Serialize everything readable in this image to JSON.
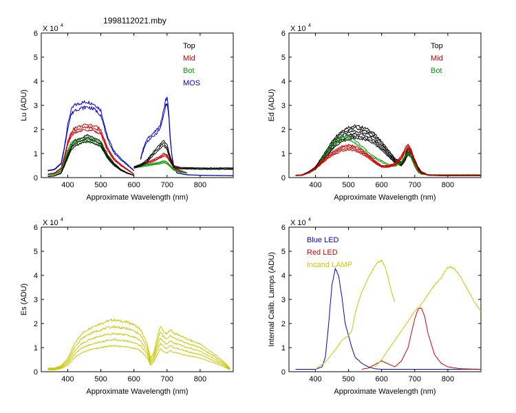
{
  "figure_title": "1998112021.mby",
  "chart_data": [
    {
      "id": "lu",
      "type": "line",
      "ylabel": "Lu (ADU)",
      "xlabel": "Approximate Wavelength (nm)",
      "exponent_label": "X 10",
      "exponent_power": "4",
      "xlim": [
        320,
        900
      ],
      "ylim": [
        0,
        6
      ],
      "xticks": [
        400,
        500,
        600,
        700,
        800
      ],
      "yticks": [
        0,
        1,
        2,
        3,
        4,
        5,
        6
      ],
      "legend": [
        {
          "label": "Top",
          "color": "#000000"
        },
        {
          "label": "Mid",
          "color": "#cc0000"
        },
        {
          "label": "Bot",
          "color": "#009900"
        },
        {
          "label": "MOS",
          "color": "#0000cc"
        }
      ],
      "series": [
        {
          "name": "MOS",
          "color": "#0000cc",
          "count": 2,
          "scales": [
            1.0,
            0.93
          ],
          "segments": [
            {
              "x": [
                340,
                360,
                380,
                390,
                400,
                410,
                420,
                440,
                460,
                480,
                500,
                520,
                540,
                560,
                580,
                600
              ],
              "y": [
                0.3,
                0.35,
                0.6,
                1.3,
                2.2,
                2.8,
                3.0,
                3.1,
                3.15,
                3.05,
                2.8,
                1.7,
                1.1,
                0.8,
                0.55,
                0.3
              ]
            },
            {
              "x": [
                620,
                630,
                640,
                650,
                660,
                670,
                680,
                690,
                695,
                700,
                705,
                710,
                715,
                720,
                730,
                760,
                800,
                900
              ],
              "y": [
                0.8,
                1.3,
                1.6,
                1.75,
                1.85,
                2.0,
                2.2,
                2.8,
                3.2,
                3.3,
                2.8,
                1.6,
                0.9,
                0.5,
                0.2,
                0.12,
                0.1,
                0.08
              ]
            }
          ]
        },
        {
          "name": "Mid",
          "color": "#cc0000",
          "count": 3,
          "scales": [
            1.0,
            0.95,
            0.9
          ],
          "segments": [
            {
              "x": [
                340,
                360,
                380,
                390,
                400,
                410,
                420,
                440,
                460,
                480,
                500,
                520,
                540,
                560,
                580,
                600
              ],
              "y": [
                0.15,
                0.2,
                0.4,
                0.9,
                1.5,
                1.9,
                2.05,
                2.15,
                2.2,
                2.15,
                2.0,
                1.25,
                0.8,
                0.55,
                0.35,
                0.15
              ]
            },
            {
              "x": [
                600,
                620,
                640,
                660,
                680,
                690,
                700,
                710,
                720,
                740,
                760
              ],
              "y": [
                0.45,
                0.55,
                0.65,
                0.75,
                0.9,
                1.0,
                0.95,
                0.7,
                0.45,
                0.3,
                0.2
              ]
            }
          ]
        },
        {
          "name": "Bot",
          "color": "#009900",
          "count": 3,
          "scales": [
            1.0,
            0.94,
            0.88
          ],
          "segments": [
            {
              "x": [
                340,
                360,
                380,
                390,
                400,
                410,
                420,
                440,
                460,
                480,
                500,
                520,
                540,
                560,
                580,
                600
              ],
              "y": [
                0.12,
                0.15,
                0.3,
                0.7,
                1.15,
                1.45,
                1.55,
                1.62,
                1.68,
                1.6,
                1.45,
                0.9,
                0.55,
                0.35,
                0.2,
                0.1
              ]
            },
            {
              "x": [
                600,
                620,
                640,
                660,
                680,
                690,
                700,
                710,
                720,
                740,
                760
              ],
              "y": [
                0.45,
                0.5,
                0.55,
                0.6,
                0.65,
                0.7,
                0.65,
                0.5,
                0.35,
                0.25,
                0.2
              ]
            }
          ]
        },
        {
          "name": "Top",
          "color": "#000000",
          "count": 3,
          "scales": [
            1.0,
            0.93,
            0.86
          ],
          "segments": [
            {
              "x": [
                340,
                360,
                380,
                390,
                400,
                410,
                420,
                440,
                460,
                480,
                500,
                520,
                540,
                560,
                580,
                600
              ],
              "y": [
                0.05,
                0.08,
                0.2,
                0.55,
                0.95,
                1.3,
                1.5,
                1.65,
                1.75,
                1.65,
                1.5,
                0.95,
                0.6,
                0.35,
                0.2,
                0.1
              ]
            },
            {
              "x": [
                600,
                620,
                640,
                660,
                680,
                690,
                700,
                710,
                720,
                740,
                800,
                900
              ],
              "y": [
                0.45,
                0.55,
                0.75,
                1.1,
                1.4,
                1.55,
                1.35,
                0.85,
                0.5,
                0.42,
                0.4,
                0.4
              ]
            }
          ]
        }
      ]
    },
    {
      "id": "ed",
      "type": "line",
      "ylabel": "Ed  (ADU)",
      "xlabel": "Approximate Wavelength (nm)",
      "exponent_label": "X 10",
      "exponent_power": "4",
      "xlim": [
        320,
        900
      ],
      "ylim": [
        0,
        6
      ],
      "xticks": [
        400,
        500,
        600,
        700,
        800
      ],
      "yticks": [
        0,
        1,
        2,
        3,
        4,
        5,
        6
      ],
      "legend": [
        {
          "label": "Top",
          "color": "#000000"
        },
        {
          "label": "Mid",
          "color": "#cc0000"
        },
        {
          "label": "Bot",
          "color": "#009900"
        }
      ],
      "series": [
        {
          "name": "Top",
          "color": "#000000",
          "count": 6,
          "scales": [
            1.0,
            0.95,
            0.9,
            0.85,
            0.8,
            0.76
          ],
          "segments": [
            {
              "x": [
                340,
                360,
                380,
                400,
                420,
                440,
                460,
                480,
                500,
                520,
                540,
                560,
                580,
                600,
                620,
                640,
                660,
                670,
                680,
                690,
                700,
                710,
                720,
                740,
                780,
                900
              ],
              "y": [
                0.1,
                0.12,
                0.25,
                0.45,
                0.85,
                1.3,
                1.7,
                1.95,
                2.1,
                2.15,
                2.1,
                2.0,
                1.8,
                1.5,
                1.15,
                0.8,
                0.65,
                0.9,
                1.25,
                1.1,
                0.75,
                0.45,
                0.25,
                0.12,
                0.1,
                0.1
              ]
            }
          ]
        },
        {
          "name": "Bot",
          "color": "#009900",
          "count": 2,
          "scales": [
            1.0,
            0.92
          ],
          "segments": [
            {
              "x": [
                400,
                420,
                440,
                460,
                480,
                500,
                520,
                540,
                560,
                580,
                600,
                620,
                640,
                660,
                670,
                680,
                690,
                700,
                710,
                720,
                740,
                900
              ],
              "y": [
                0.35,
                0.8,
                1.25,
                1.55,
                1.7,
                1.7,
                1.55,
                1.3,
                1.05,
                0.85,
                0.7,
                0.55,
                0.5,
                0.65,
                0.9,
                1.1,
                0.85,
                0.5,
                0.25,
                0.15,
                0.12,
                0.12
              ]
            }
          ]
        },
        {
          "name": "Mid",
          "color": "#cc0000",
          "count": 4,
          "scales": [
            1.0,
            0.95,
            0.9,
            0.85
          ],
          "segments": [
            {
              "x": [
                340,
                360,
                380,
                400,
                420,
                440,
                460,
                480,
                500,
                520,
                540,
                560,
                580,
                600,
                620,
                640,
                660,
                670,
                680,
                690,
                700,
                710,
                720,
                740,
                780,
                900
              ],
              "y": [
                0.1,
                0.12,
                0.22,
                0.4,
                0.7,
                0.95,
                1.15,
                1.3,
                1.35,
                1.3,
                1.15,
                0.95,
                0.7,
                0.5,
                0.5,
                0.6,
                0.9,
                1.2,
                1.4,
                1.15,
                0.7,
                0.35,
                0.2,
                0.12,
                0.1,
                0.1
              ]
            }
          ]
        }
      ]
    },
    {
      "id": "es",
      "type": "line",
      "ylabel": "Es  (ADU)",
      "xlabel": "Approximate Wavelength (nm)",
      "exponent_label": "X 10",
      "exponent_power": "4",
      "xlim": [
        320,
        900
      ],
      "ylim": [
        0,
        6
      ],
      "xticks": [
        400,
        500,
        600,
        700,
        800
      ],
      "yticks": [
        0,
        1,
        2,
        3,
        4,
        5,
        6
      ],
      "legend": [],
      "series": [
        {
          "name": "Es",
          "color": "#c8c800",
          "count": 5,
          "scales": [
            1.0,
            0.87,
            0.74,
            0.62,
            0.5
          ],
          "segments": [
            {
              "x": [
                340,
                360,
                380,
                400,
                420,
                440,
                460,
                480,
                500,
                520,
                540,
                560,
                580,
                600,
                620,
                640,
                650,
                660,
                670,
                680,
                690,
                700,
                710,
                720,
                740,
                760,
                780,
                800,
                820,
                840,
                860,
                880,
                890
              ],
              "y": [
                0.15,
                0.15,
                0.25,
                0.55,
                1.15,
                1.55,
                1.75,
                1.9,
                2.0,
                2.1,
                2.15,
                2.1,
                2.05,
                1.95,
                1.75,
                1.15,
                0.55,
                0.8,
                1.4,
                1.9,
                1.65,
                1.55,
                1.75,
                1.6,
                1.5,
                1.35,
                1.25,
                1.15,
                0.95,
                0.75,
                0.55,
                0.3,
                0.15
              ]
            }
          ]
        }
      ]
    },
    {
      "id": "lamps",
      "type": "line",
      "ylabel": "Internal Calib. Lamps (ADU)",
      "xlabel": "Approximate Wavelength (nm)",
      "exponent_label": "X 10",
      "exponent_power": "4",
      "xlim": [
        320,
        900
      ],
      "ylim": [
        0,
        6
      ],
      "xticks": [
        400,
        500,
        600,
        700,
        800
      ],
      "yticks": [
        0,
        1,
        2,
        3,
        4,
        5,
        6
      ],
      "legend": [
        {
          "label": "Blue LED",
          "color": "#0000cc"
        },
        {
          "label": "Red LED",
          "color": "#cc0000"
        },
        {
          "label": "Incand LAMP",
          "color": "#c8c800"
        }
      ],
      "series": [
        {
          "name": "Blue LED",
          "color": "#0000cc",
          "count": 1,
          "scales": [
            1.0
          ],
          "segments": [
            {
              "x": [
                340,
                400,
                420,
                430,
                440,
                450,
                460,
                470,
                480,
                490,
                500,
                510,
                520,
                540,
                560,
                580,
                600,
                650,
                700,
                900
              ],
              "y": [
                0.1,
                0.1,
                0.2,
                0.6,
                2.0,
                3.6,
                4.3,
                4.0,
                3.1,
                2.0,
                1.5,
                1.0,
                0.6,
                0.35,
                0.2,
                0.12,
                0.1,
                0.1,
                0.1,
                0.1
              ]
            }
          ]
        },
        {
          "name": "Red LED",
          "color": "#cc0000",
          "count": 1,
          "scales": [
            1.0
          ],
          "segments": [
            {
              "x": [
                540,
                560,
                580,
                600,
                640,
                660,
                680,
                690,
                700,
                710,
                720,
                730,
                740,
                760,
                780,
                800,
                840,
                900
              ],
              "y": [
                0.1,
                0.15,
                0.3,
                0.45,
                0.2,
                0.45,
                1.0,
                1.6,
                2.2,
                2.6,
                2.65,
                2.3,
                1.6,
                0.7,
                0.35,
                0.2,
                0.12,
                0.1
              ]
            }
          ]
        },
        {
          "name": "Incand LAMP",
          "color": "#c8c800",
          "count": 1,
          "scales": [
            1.0
          ],
          "segments": [
            {
              "x": [
                400,
                430,
                460,
                480,
                500,
                510,
                520,
                530,
                540,
                560,
                580,
                590,
                600,
                610,
                620,
                630,
                640
              ],
              "y": [
                0.1,
                0.4,
                0.9,
                1.3,
                1.5,
                1.7,
                2.4,
                2.9,
                3.3,
                3.9,
                4.4,
                4.55,
                4.6,
                4.4,
                3.9,
                3.3,
                2.9
              ]
            },
            {
              "x": [
                580,
                600,
                620,
                640,
                660,
                680,
                700,
                720,
                740,
                760,
                780,
                800,
                820,
                840,
                860,
                880,
                900
              ],
              "y": [
                0.2,
                0.5,
                0.9,
                1.3,
                1.7,
                2.1,
                2.5,
                2.8,
                3.2,
                3.6,
                3.9,
                4.35,
                4.3,
                3.9,
                3.4,
                2.9,
                2.5
              ]
            }
          ]
        }
      ]
    }
  ]
}
